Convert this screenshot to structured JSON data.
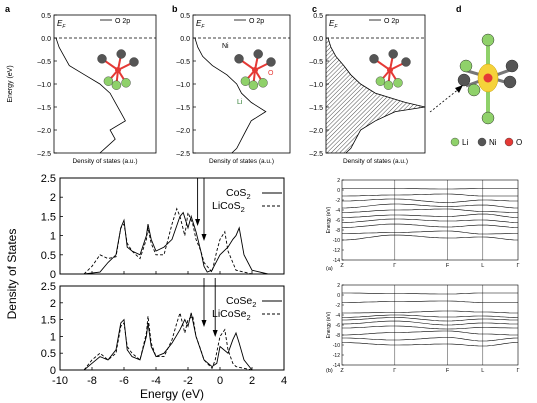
{
  "chart_data": [
    {
      "panel_label": "a",
      "type": "line",
      "series": [
        {
          "name": "O 2p",
          "y": [
            0,
            -0.2,
            -0.4,
            -0.6,
            -0.8,
            -1.0,
            -1.2,
            -1.4,
            -1.6,
            -1.8,
            -2.0,
            -2.2,
            -2.4,
            -2.5
          ],
          "x": [
            0.02,
            0.05,
            0.1,
            0.15,
            0.3,
            0.45,
            0.55,
            0.6,
            0.65,
            0.7,
            0.55,
            0.6,
            0.5,
            0.45
          ]
        }
      ],
      "xlabel": "Density of states (a.u.)",
      "ylabel": "Energy (eV)",
      "ylim": [
        -2.5,
        0.5
      ],
      "yticks": [
        "0.5",
        "0.0",
        "–0.5",
        "–1.0",
        "–1.5",
        "–2.0",
        "–2.5"
      ],
      "fermi_label": "E",
      "fermi_sub": "F"
    },
    {
      "panel_label": "b",
      "type": "line",
      "series": [
        {
          "name": "O 2p",
          "y": [
            0,
            -0.2,
            -0.4,
            -0.6,
            -0.8,
            -1.0,
            -1.2,
            -1.4,
            -1.6,
            -1.8,
            -2.0,
            -2.2,
            -2.4,
            -2.5
          ],
          "x": [
            0.02,
            0.05,
            0.1,
            0.2,
            0.35,
            0.45,
            0.5,
            0.6,
            0.75,
            0.6,
            0.55,
            0.5,
            0.45,
            0.4
          ]
        }
      ],
      "xlabel": "Density of states (a.u.)",
      "ylim": [
        -2.5,
        0.5
      ],
      "atom_labels": [
        "Ni",
        "O",
        "Li"
      ],
      "fermi_label": "E",
      "fermi_sub": "F"
    },
    {
      "panel_label": "c",
      "type": "area",
      "series": [
        {
          "name": "O 2p",
          "y": [
            0,
            -0.2,
            -0.4,
            -0.6,
            -0.8,
            -1.0,
            -1.2,
            -1.4,
            -1.5,
            -1.6,
            -1.8,
            -2.0,
            -2.2,
            -2.4,
            -2.5
          ],
          "x": [
            0.02,
            0.05,
            0.1,
            0.18,
            0.25,
            0.35,
            0.5,
            0.8,
            1.0,
            0.7,
            0.5,
            0.35,
            0.3,
            0.25,
            0.2
          ]
        }
      ],
      "xlabel": "Density of states (a.u.)",
      "ylim": [
        -2.5,
        0.5
      ],
      "fermi_label": "E",
      "fermi_sub": "F"
    },
    {
      "panel_label": "d",
      "type": "diagram",
      "legend": [
        {
          "label": "Li",
          "color": "#8fd16a"
        },
        {
          "label": "Ni",
          "color": "#555555"
        },
        {
          "label": "O",
          "color": "#e53935"
        }
      ]
    },
    {
      "type": "line",
      "ylabel": "Density of States",
      "xlabel": "Energy (eV)",
      "xlim": [
        -10,
        4
      ],
      "xticks": [
        "-10",
        "-8",
        "-6",
        "-4",
        "-2",
        "0",
        "2",
        "4"
      ],
      "panels": [
        {
          "ylim": [
            0,
            2.5
          ],
          "yticks": [
            "0",
            "0.5",
            "1",
            "1.5",
            "2",
            "2.5"
          ],
          "legend_text": [
            "CoS",
            "LiCoS"
          ],
          "legend_sub": "2",
          "series": [
            {
              "name": "CoS2",
              "style": "solid",
              "x": [
                -8.5,
                -7.5,
                -7,
                -6.5,
                -6.2,
                -6,
                -5.8,
                -5.5,
                -5,
                -4.6,
                -4.5,
                -4.3,
                -4,
                -3.5,
                -3,
                -2.5,
                -2.3,
                -2,
                -1.8,
                -1.5,
                -1.2,
                -1,
                -0.8,
                -0.5,
                0,
                0.5,
                0.8,
                1,
                1.2,
                1.5,
                2,
                3
              ],
              "y": [
                0,
                0.05,
                0.3,
                0.5,
                1.2,
                1.4,
                0.7,
                0.6,
                0.5,
                1.0,
                1.3,
                0.9,
                0.6,
                0.7,
                0.9,
                1.5,
                1.6,
                1.2,
                1.5,
                1.1,
                0.6,
                0.2,
                0.05,
                0.1,
                0.5,
                0.7,
                0.9,
                1.0,
                1.2,
                0.5,
                0.1,
                0
              ]
            },
            {
              "name": "LiCoS2",
              "style": "dashed",
              "x": [
                -8.5,
                -8,
                -7.5,
                -7,
                -6.5,
                -6.2,
                -6,
                -5.8,
                -5.5,
                -5,
                -4.6,
                -4.5,
                -4.3,
                -4,
                -3.5,
                -3,
                -2.7,
                -2.5,
                -2.2,
                -2,
                -1.7,
                -1.5,
                -1.2,
                -1,
                -0.5,
                -0.2,
                0,
                0.3,
                0.5,
                0.8,
                1,
                2
              ],
              "y": [
                0,
                0.2,
                0.5,
                0.4,
                0.45,
                1.2,
                1.3,
                0.8,
                0.6,
                0.4,
                0.9,
                1.2,
                0.8,
                0.5,
                0.5,
                1.3,
                1.7,
                1.5,
                1.0,
                1.6,
                1.3,
                0.9,
                0.6,
                0.3,
                0.05,
                0.6,
                0.9,
                1.1,
                0.6,
                0.3,
                0.1,
                0
              ]
            }
          ]
        },
        {
          "ylim": [
            0,
            2.5
          ],
          "yticks": [
            "0",
            "0.5",
            "1",
            "1.5",
            "2",
            "2.5"
          ],
          "legend_text": [
            "CoSe",
            "LiCoSe"
          ],
          "legend_sub": "2",
          "series": [
            {
              "name": "CoSe2",
              "style": "solid",
              "x": [
                -8.5,
                -8,
                -7.5,
                -7,
                -6.5,
                -6.2,
                -6,
                -5.8,
                -5.5,
                -5,
                -4.6,
                -4.5,
                -4.3,
                -4,
                -3.5,
                -3,
                -2.5,
                -2.2,
                -2,
                -1.8,
                -1.5,
                -1,
                -0.5,
                -0.2,
                0,
                0.5,
                0.8,
                1,
                1.2,
                1.5,
                2
              ],
              "y": [
                0,
                0.2,
                0.4,
                0.3,
                0.6,
                1.4,
                1.5,
                0.6,
                0.4,
                0.3,
                1.0,
                1.4,
                0.7,
                0.4,
                0.5,
                0.8,
                1.2,
                1.5,
                1.3,
                1.7,
                1.0,
                0.3,
                0.1,
                0.2,
                0.7,
                0.5,
                0.9,
                1.1,
                0.8,
                0.3,
                0
              ]
            },
            {
              "name": "LiCoSe2",
              "style": "dashed",
              "x": [
                -8.5,
                -8,
                -7.5,
                -7,
                -6.5,
                -6.2,
                -6,
                -5.8,
                -5.5,
                -5,
                -4.6,
                -4.5,
                -4.3,
                -4,
                -3.5,
                -3,
                -2.7,
                -2.5,
                -2.2,
                -2,
                -1.7,
                -1.5,
                -1.2,
                -1,
                -0.5,
                -0.3,
                0,
                0.3,
                0.5,
                0.8,
                1,
                2
              ],
              "y": [
                0,
                0.3,
                0.5,
                0.3,
                0.5,
                1.3,
                1.4,
                0.7,
                0.5,
                0.3,
                1.1,
                1.6,
                0.8,
                0.4,
                0.4,
                0.9,
                1.4,
                1.7,
                1.1,
                1.5,
                1.6,
                1.0,
                0.6,
                0.3,
                0.05,
                0.3,
                1.0,
                1.2,
                0.6,
                0.2,
                0.1,
                0
              ]
            }
          ]
        }
      ]
    },
    {
      "panel_label": "(a)",
      "type": "line",
      "ylabel": "Energy (eV)",
      "ylim": [
        -14,
        2
      ],
      "yticks": [
        "2",
        "0",
        "-2",
        "-4",
        "-6",
        "-8",
        "-10",
        "-12",
        "-14"
      ],
      "kpoints": [
        "Z",
        "Γ",
        "F",
        "L",
        "Γ"
      ],
      "kpos": [
        0,
        0.3,
        0.6,
        0.8,
        1.0
      ],
      "bands": [
        [
          0.3,
          0.3,
          0.2,
          0.3,
          0.3
        ],
        [
          -1.2,
          -1.0,
          -0.8,
          -1.2,
          -1.2
        ],
        [
          -2.2,
          -1.8,
          -2.5,
          -2.0,
          -2.2
        ],
        [
          -3.6,
          -2.8,
          -3.3,
          -3.0,
          -3.6
        ],
        [
          -4.5,
          -4.0,
          -3.8,
          -4.3,
          -4.5
        ],
        [
          -5.5,
          -5.0,
          -5.3,
          -4.8,
          -5.5
        ],
        [
          -6.5,
          -5.8,
          -6.2,
          -6.0,
          -6.5
        ],
        [
          -7.5,
          -6.8,
          -7.4,
          -7.0,
          -7.5
        ],
        [
          -8.7,
          -8.5,
          -8.2,
          -8.8,
          -8.7
        ],
        [
          -10.0,
          -9.0,
          -9.6,
          -9.4,
          -10.0
        ]
      ]
    },
    {
      "panel_label": "(b)",
      "type": "line",
      "ylabel": "Energy (eV)",
      "ylim": [
        -14,
        2
      ],
      "yticks": [
        "2",
        "0",
        "-2",
        "-4",
        "-6",
        "-8",
        "-10",
        "-12",
        "-14"
      ],
      "kpoints": [
        "Z",
        "Γ",
        "F",
        "L",
        "Γ"
      ],
      "kpos": [
        0,
        0.3,
        0.6,
        0.8,
        1.0
      ],
      "bands": [
        [
          0.4,
          0.3,
          0.2,
          0.4,
          0.4
        ],
        [
          -1.5,
          -1.3,
          -1.2,
          -1.5,
          -1.5
        ],
        [
          -3.6,
          -3.5,
          -3.2,
          -3.4,
          -3.6
        ],
        [
          -4.5,
          -4.0,
          -4.4,
          -4.2,
          -4.5
        ],
        [
          -5.0,
          -4.5,
          -5.2,
          -4.8,
          -5.0
        ],
        [
          -5.8,
          -5.2,
          -6.0,
          -5.6,
          -5.8
        ],
        [
          -6.6,
          -6.2,
          -6.8,
          -6.5,
          -6.6
        ],
        [
          -8.0,
          -7.5,
          -7.2,
          -7.8,
          -8.0
        ],
        [
          -8.6,
          -9.0,
          -8.5,
          -9.2,
          -8.6
        ],
        [
          -9.5,
          -10.0,
          -9.8,
          -10.2,
          -9.5
        ]
      ]
    }
  ]
}
